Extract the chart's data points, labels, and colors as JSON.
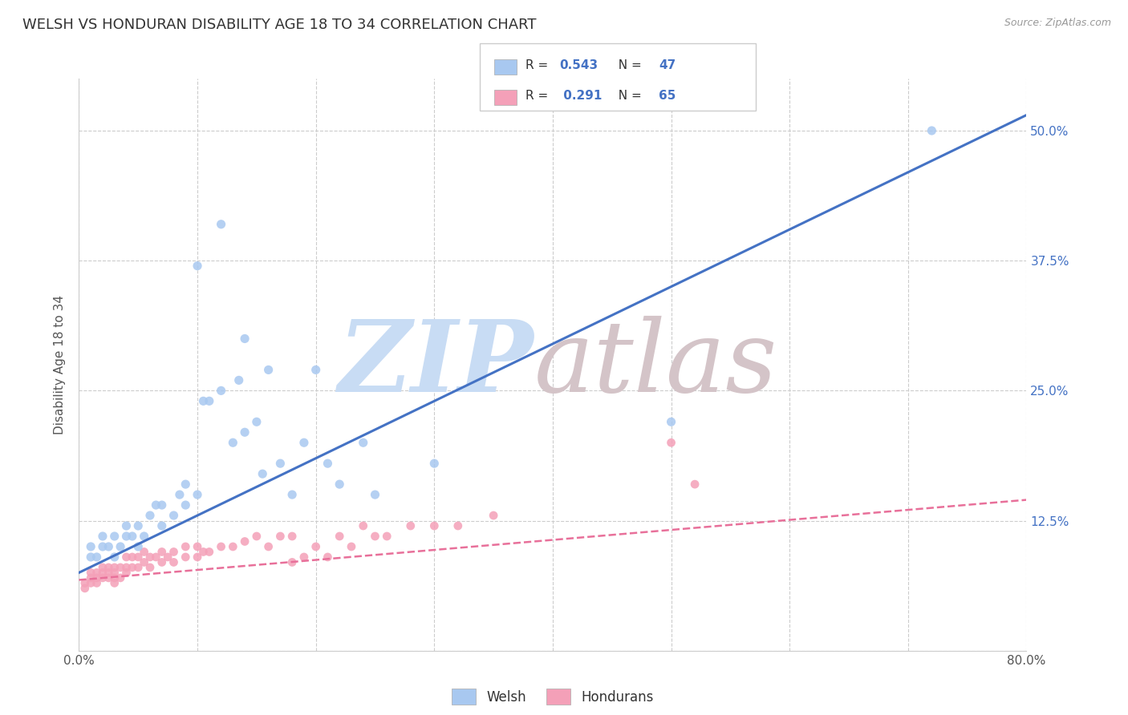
{
  "title": "WELSH VS HONDURAN DISABILITY AGE 18 TO 34 CORRELATION CHART",
  "source_text": "Source: ZipAtlas.com",
  "ylabel": "Disability Age 18 to 34",
  "xlim": [
    0.0,
    0.8
  ],
  "ylim": [
    0.0,
    0.55
  ],
  "xticks": [
    0.0,
    0.1,
    0.2,
    0.3,
    0.4,
    0.5,
    0.6,
    0.7,
    0.8
  ],
  "xticklabels": [
    "0.0%",
    "",
    "",
    "",
    "",
    "",
    "",
    "",
    "80.0%"
  ],
  "yticks": [
    0.0,
    0.125,
    0.25,
    0.375,
    0.5
  ],
  "yticklabels": [
    "",
    "12.5%",
    "25.0%",
    "37.5%",
    "50.0%"
  ],
  "welsh_R": 0.543,
  "welsh_N": 47,
  "honduran_R": 0.291,
  "honduran_N": 65,
  "welsh_color": "#A8C8F0",
  "honduran_color": "#F4A0B8",
  "welsh_line_color": "#4472C4",
  "honduran_line_color": "#E8709A",
  "grid_color": "#CCCCCC",
  "background_color": "#FFFFFF",
  "legend_welsh_label": "Welsh",
  "legend_honduran_label": "Hondurans",
  "welsh_line_x0": 0.0,
  "welsh_line_y0": 0.075,
  "welsh_line_x1": 0.8,
  "welsh_line_y1": 0.515,
  "honduran_line_x0": 0.0,
  "honduran_line_y0": 0.068,
  "honduran_line_x1": 0.8,
  "honduran_line_y1": 0.145,
  "welsh_scatter_x": [
    0.01,
    0.01,
    0.015,
    0.02,
    0.02,
    0.025,
    0.03,
    0.03,
    0.035,
    0.04,
    0.04,
    0.045,
    0.05,
    0.05,
    0.055,
    0.06,
    0.065,
    0.07,
    0.07,
    0.08,
    0.085,
    0.09,
    0.09,
    0.1,
    0.105,
    0.11,
    0.12,
    0.13,
    0.135,
    0.14,
    0.15,
    0.155,
    0.17,
    0.18,
    0.19,
    0.21,
    0.22,
    0.24,
    0.5,
    0.14,
    0.16,
    0.1,
    0.12,
    0.2,
    0.72,
    0.25,
    0.3
  ],
  "welsh_scatter_y": [
    0.09,
    0.1,
    0.09,
    0.1,
    0.11,
    0.1,
    0.09,
    0.11,
    0.1,
    0.11,
    0.12,
    0.11,
    0.1,
    0.12,
    0.11,
    0.13,
    0.14,
    0.12,
    0.14,
    0.13,
    0.15,
    0.14,
    0.16,
    0.15,
    0.24,
    0.24,
    0.25,
    0.2,
    0.26,
    0.21,
    0.22,
    0.17,
    0.18,
    0.15,
    0.2,
    0.18,
    0.16,
    0.2,
    0.22,
    0.3,
    0.27,
    0.37,
    0.41,
    0.27,
    0.5,
    0.15,
    0.18
  ],
  "honduran_scatter_x": [
    0.005,
    0.005,
    0.01,
    0.01,
    0.01,
    0.015,
    0.015,
    0.015,
    0.02,
    0.02,
    0.02,
    0.025,
    0.025,
    0.025,
    0.03,
    0.03,
    0.03,
    0.03,
    0.035,
    0.035,
    0.04,
    0.04,
    0.04,
    0.045,
    0.045,
    0.05,
    0.05,
    0.055,
    0.055,
    0.06,
    0.06,
    0.065,
    0.07,
    0.07,
    0.075,
    0.08,
    0.08,
    0.09,
    0.09,
    0.1,
    0.1,
    0.105,
    0.11,
    0.12,
    0.13,
    0.14,
    0.15,
    0.16,
    0.17,
    0.18,
    0.2,
    0.22,
    0.24,
    0.26,
    0.28,
    0.3,
    0.32,
    0.35,
    0.5,
    0.52,
    0.18,
    0.19,
    0.21,
    0.23,
    0.25
  ],
  "honduran_scatter_y": [
    0.06,
    0.065,
    0.065,
    0.07,
    0.075,
    0.065,
    0.07,
    0.075,
    0.07,
    0.075,
    0.08,
    0.07,
    0.075,
    0.08,
    0.065,
    0.07,
    0.075,
    0.08,
    0.07,
    0.08,
    0.075,
    0.08,
    0.09,
    0.08,
    0.09,
    0.08,
    0.09,
    0.085,
    0.095,
    0.08,
    0.09,
    0.09,
    0.085,
    0.095,
    0.09,
    0.085,
    0.095,
    0.09,
    0.1,
    0.09,
    0.1,
    0.095,
    0.095,
    0.1,
    0.1,
    0.105,
    0.11,
    0.1,
    0.11,
    0.11,
    0.1,
    0.11,
    0.12,
    0.11,
    0.12,
    0.12,
    0.12,
    0.13,
    0.2,
    0.16,
    0.085,
    0.09,
    0.09,
    0.1,
    0.11
  ]
}
